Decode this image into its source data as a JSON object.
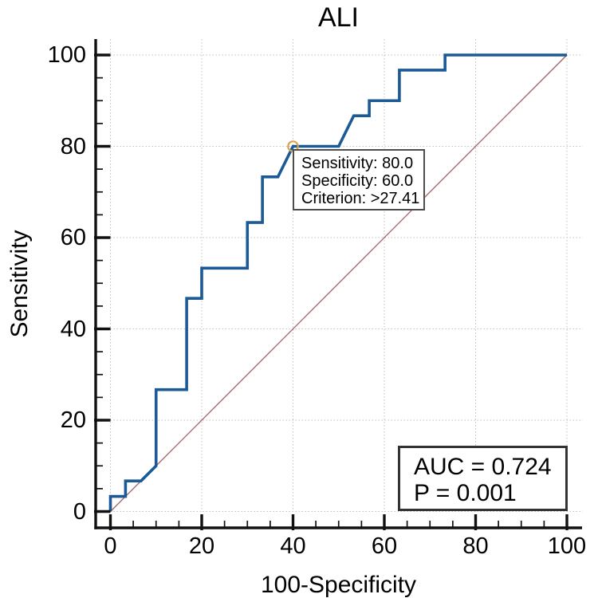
{
  "title": "ALI",
  "axes": {
    "x_label": "100-Specificity",
    "y_label": "Sensitivity",
    "x_tick_labels": [
      "0",
      "20",
      "40",
      "60",
      "80",
      "100"
    ],
    "y_tick_labels": [
      "0",
      "20",
      "40",
      "60",
      "80",
      "100"
    ]
  },
  "chart_data": {
    "type": "line",
    "subtype": "roc-curve",
    "title": "ALI",
    "xlabel": "100-Specificity",
    "ylabel": "Sensitivity",
    "xlim": [
      0,
      100
    ],
    "ylim": [
      0,
      100
    ],
    "grid": true,
    "x_major_ticks": [
      0,
      20,
      40,
      60,
      80,
      100
    ],
    "y_major_ticks": [
      0,
      20,
      40,
      60,
      80,
      100
    ],
    "minor_tick_step": 5,
    "series": [
      {
        "name": "ROC curve",
        "color": "#1b5a96",
        "points": [
          [
            0,
            0
          ],
          [
            0,
            3.3
          ],
          [
            3.3,
            3.3
          ],
          [
            3.3,
            6.7
          ],
          [
            6.7,
            6.7
          ],
          [
            10,
            10
          ],
          [
            10,
            26.7
          ],
          [
            16.7,
            26.7
          ],
          [
            16.7,
            46.7
          ],
          [
            20,
            46.7
          ],
          [
            20,
            53.3
          ],
          [
            30,
            53.3
          ],
          [
            30,
            63.3
          ],
          [
            33.3,
            63.3
          ],
          [
            33.3,
            73.3
          ],
          [
            36.7,
            73.3
          ],
          [
            40,
            80
          ],
          [
            50,
            80
          ],
          [
            53.3,
            86.7
          ],
          [
            56.7,
            86.7
          ],
          [
            56.7,
            90
          ],
          [
            63.3,
            90
          ],
          [
            63.3,
            96.7
          ],
          [
            73.3,
            96.7
          ],
          [
            73.3,
            100
          ],
          [
            100,
            100
          ]
        ]
      },
      {
        "name": "reference diagonal",
        "color": "#a35f5f",
        "points": [
          [
            0,
            0
          ],
          [
            100,
            100
          ]
        ]
      }
    ],
    "marked_point": {
      "x": 40,
      "y": 80,
      "color": "#dd9f52"
    },
    "stats": {
      "auc": 0.724,
      "p": 0.001
    }
  },
  "tooltip": {
    "line1": "Sensitivity: 80.0",
    "line2": "Specificity: 60.0",
    "line3": "Criterion: >27.41"
  },
  "stats_box": {
    "line1": "AUC = 0.724",
    "line2": "P = 0.001"
  }
}
